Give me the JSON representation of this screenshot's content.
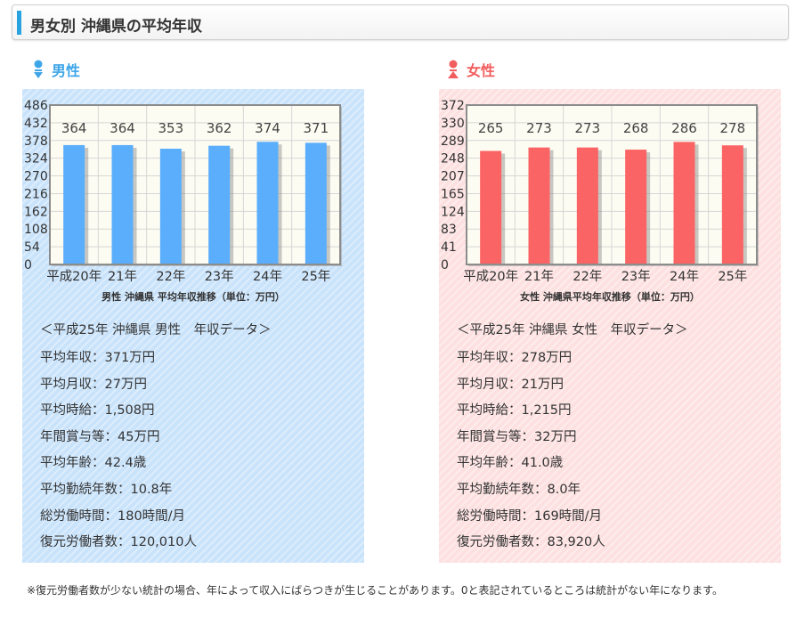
{
  "page": {
    "title": "男女別 沖縄県の平均年収"
  },
  "male": {
    "label": "男性",
    "chart_caption": "男性 沖縄県 平均年収推移（単位：万円）",
    "data_heading": "＜平成25年 沖縄県 男性　年収データ＞",
    "stats": [
      "平均年収：371万円",
      "平均月収：27万円",
      "平均時給：1,508円",
      "年間賞与等：45万円",
      "平均年齢：42.4歳",
      "平均勤続年数：10.8年",
      "総労働時間：180時間/月",
      "復元労働者数：120,010人"
    ]
  },
  "female": {
    "label": "女性",
    "chart_caption": "女性 沖縄県平均年収推移（単位：万円）",
    "data_heading": "＜平成25年 沖縄県 女性　年収データ＞",
    "stats": [
      "平均年収：278万円",
      "平均月収：21万円",
      "平均時給：1,215円",
      "年間賞与等：32万円",
      "平均年齢：41.0歳",
      "平均勤続年数：8.0年",
      "総労働時間：169時間/月",
      "復元労働者数：83,920人"
    ]
  },
  "colors": {
    "male_bar": "#5aaefb",
    "female_bar": "#fb6464",
    "accent": "#29a3e0"
  },
  "footnote": "※復元労働者数が少ない統計の場合、年によって収入にばらつきが生じることがあります。0と表記されているところは統計がない年になります。",
  "chart_data": [
    {
      "type": "bar",
      "title": "男性 沖縄県 平均年収推移（単位：万円）",
      "categories": [
        "平成20年",
        "21年",
        "22年",
        "23年",
        "24年",
        "25年"
      ],
      "values": [
        364,
        364,
        353,
        362,
        374,
        371
      ],
      "yticks": [
        "0",
        "54",
        "108",
        "162",
        "216",
        "270",
        "324",
        "378",
        "432",
        "486"
      ],
      "ylim": [
        0,
        486
      ],
      "color": "#5aaefb",
      "grid": true
    },
    {
      "type": "bar",
      "title": "女性 沖縄県平均年収推移（単位：万円）",
      "categories": [
        "平成20年",
        "21年",
        "22年",
        "23年",
        "24年",
        "25年"
      ],
      "values": [
        265,
        273,
        273,
        268,
        286,
        278
      ],
      "yticks": [
        "0",
        "41",
        "83",
        "124",
        "165",
        "207",
        "248",
        "289",
        "330",
        "372"
      ],
      "ylim": [
        0,
        372
      ],
      "color": "#fb6464",
      "grid": true
    }
  ]
}
